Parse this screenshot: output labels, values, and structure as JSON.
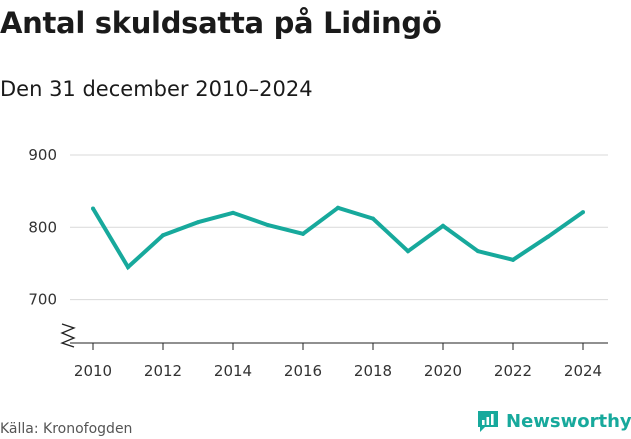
{
  "title": "Antal skuldsatta på Lidingö",
  "subtitle": "Den 31 december 2010–2024",
  "source": "Källa: Kronofogden",
  "brand": {
    "name": "Newsworthy",
    "icon": "newsworthy-logo-icon"
  },
  "colors": {
    "line": "#17a99c",
    "grid": "#d9d9d9",
    "axis": "#222222",
    "brand": "#17a99c"
  },
  "chart_data": {
    "type": "line",
    "title": "Antal skuldsatta på Lidingö",
    "subtitle": "Den 31 december 2010–2024",
    "xlabel": "",
    "ylabel": "",
    "x": [
      2010,
      2011,
      2012,
      2013,
      2014,
      2015,
      2016,
      2017,
      2018,
      2019,
      2020,
      2021,
      2022,
      2023,
      2024
    ],
    "series": [
      {
        "values": [
          826,
          745,
          789,
          807,
          820,
          803,
          791,
          827,
          812,
          767,
          802,
          767,
          755,
          787,
          821
        ]
      }
    ],
    "xticks": [
      "2010",
      "2012",
      "2014",
      "2016",
      "2018",
      "2020",
      "2022",
      "2024"
    ],
    "yticks": [
      "700",
      "800",
      "900"
    ],
    "ylim": [
      640,
      900
    ],
    "xlim": [
      2010,
      2024
    ],
    "grid": "horizontal",
    "axis_break": true
  }
}
